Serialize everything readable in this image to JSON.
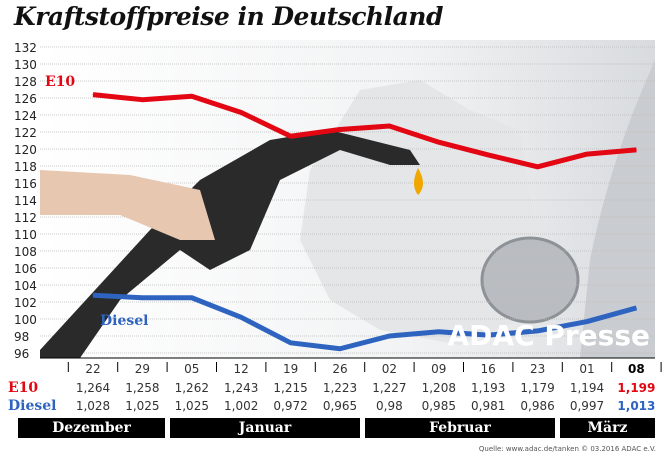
{
  "title": "Kraftstoffpreise in Deutschland",
  "source": "Quelle: www.adac.de/tanken   © 03.2016  ADAC e.V.",
  "watermark": "ADAC Presse",
  "colors": {
    "e10": "#e30613",
    "diesel": "#2e64c0",
    "month_bar": "#000000"
  },
  "chart_data": {
    "type": "line",
    "title": "Kraftstoffpreise in Deutschland",
    "ylim": [
      96,
      132
    ],
    "yticks": [
      96,
      98,
      100,
      102,
      104,
      106,
      108,
      110,
      112,
      114,
      116,
      118,
      120,
      122,
      124,
      126,
      128,
      130,
      132
    ],
    "grid": true,
    "x": [
      "22",
      "29",
      "05",
      "12",
      "19",
      "26",
      "02",
      "09",
      "16",
      "23",
      "01",
      "08"
    ],
    "months": [
      {
        "label": "Dezember",
        "from": 0,
        "to": 1
      },
      {
        "label": "Januar",
        "from": 2,
        "to": 5
      },
      {
        "label": "Februar",
        "from": 6,
        "to": 9
      },
      {
        "label": "März",
        "from": 10,
        "to": 11
      }
    ],
    "series": [
      {
        "name": "E10",
        "color": "#e30613",
        "labels": [
          "1,264",
          "1,258",
          "1,262",
          "1,243",
          "1,215",
          "1,223",
          "1,227",
          "1,208",
          "1,193",
          "1,179",
          "1,194",
          "1,199"
        ],
        "values": [
          126.4,
          125.8,
          126.2,
          124.3,
          121.5,
          122.3,
          122.7,
          120.8,
          119.3,
          117.9,
          119.4,
          119.9
        ]
      },
      {
        "name": "Diesel",
        "color": "#2e64c0",
        "labels": [
          "1,028",
          "1,025",
          "1,025",
          "1,002",
          "0,972",
          "0,965",
          "0,98",
          "0,985",
          "0,981",
          "0,986",
          "0,997",
          "1,013"
        ],
        "values": [
          102.8,
          102.5,
          102.5,
          100.2,
          97.2,
          96.5,
          98.0,
          98.5,
          98.1,
          98.6,
          99.7,
          101.3
        ]
      }
    ]
  }
}
